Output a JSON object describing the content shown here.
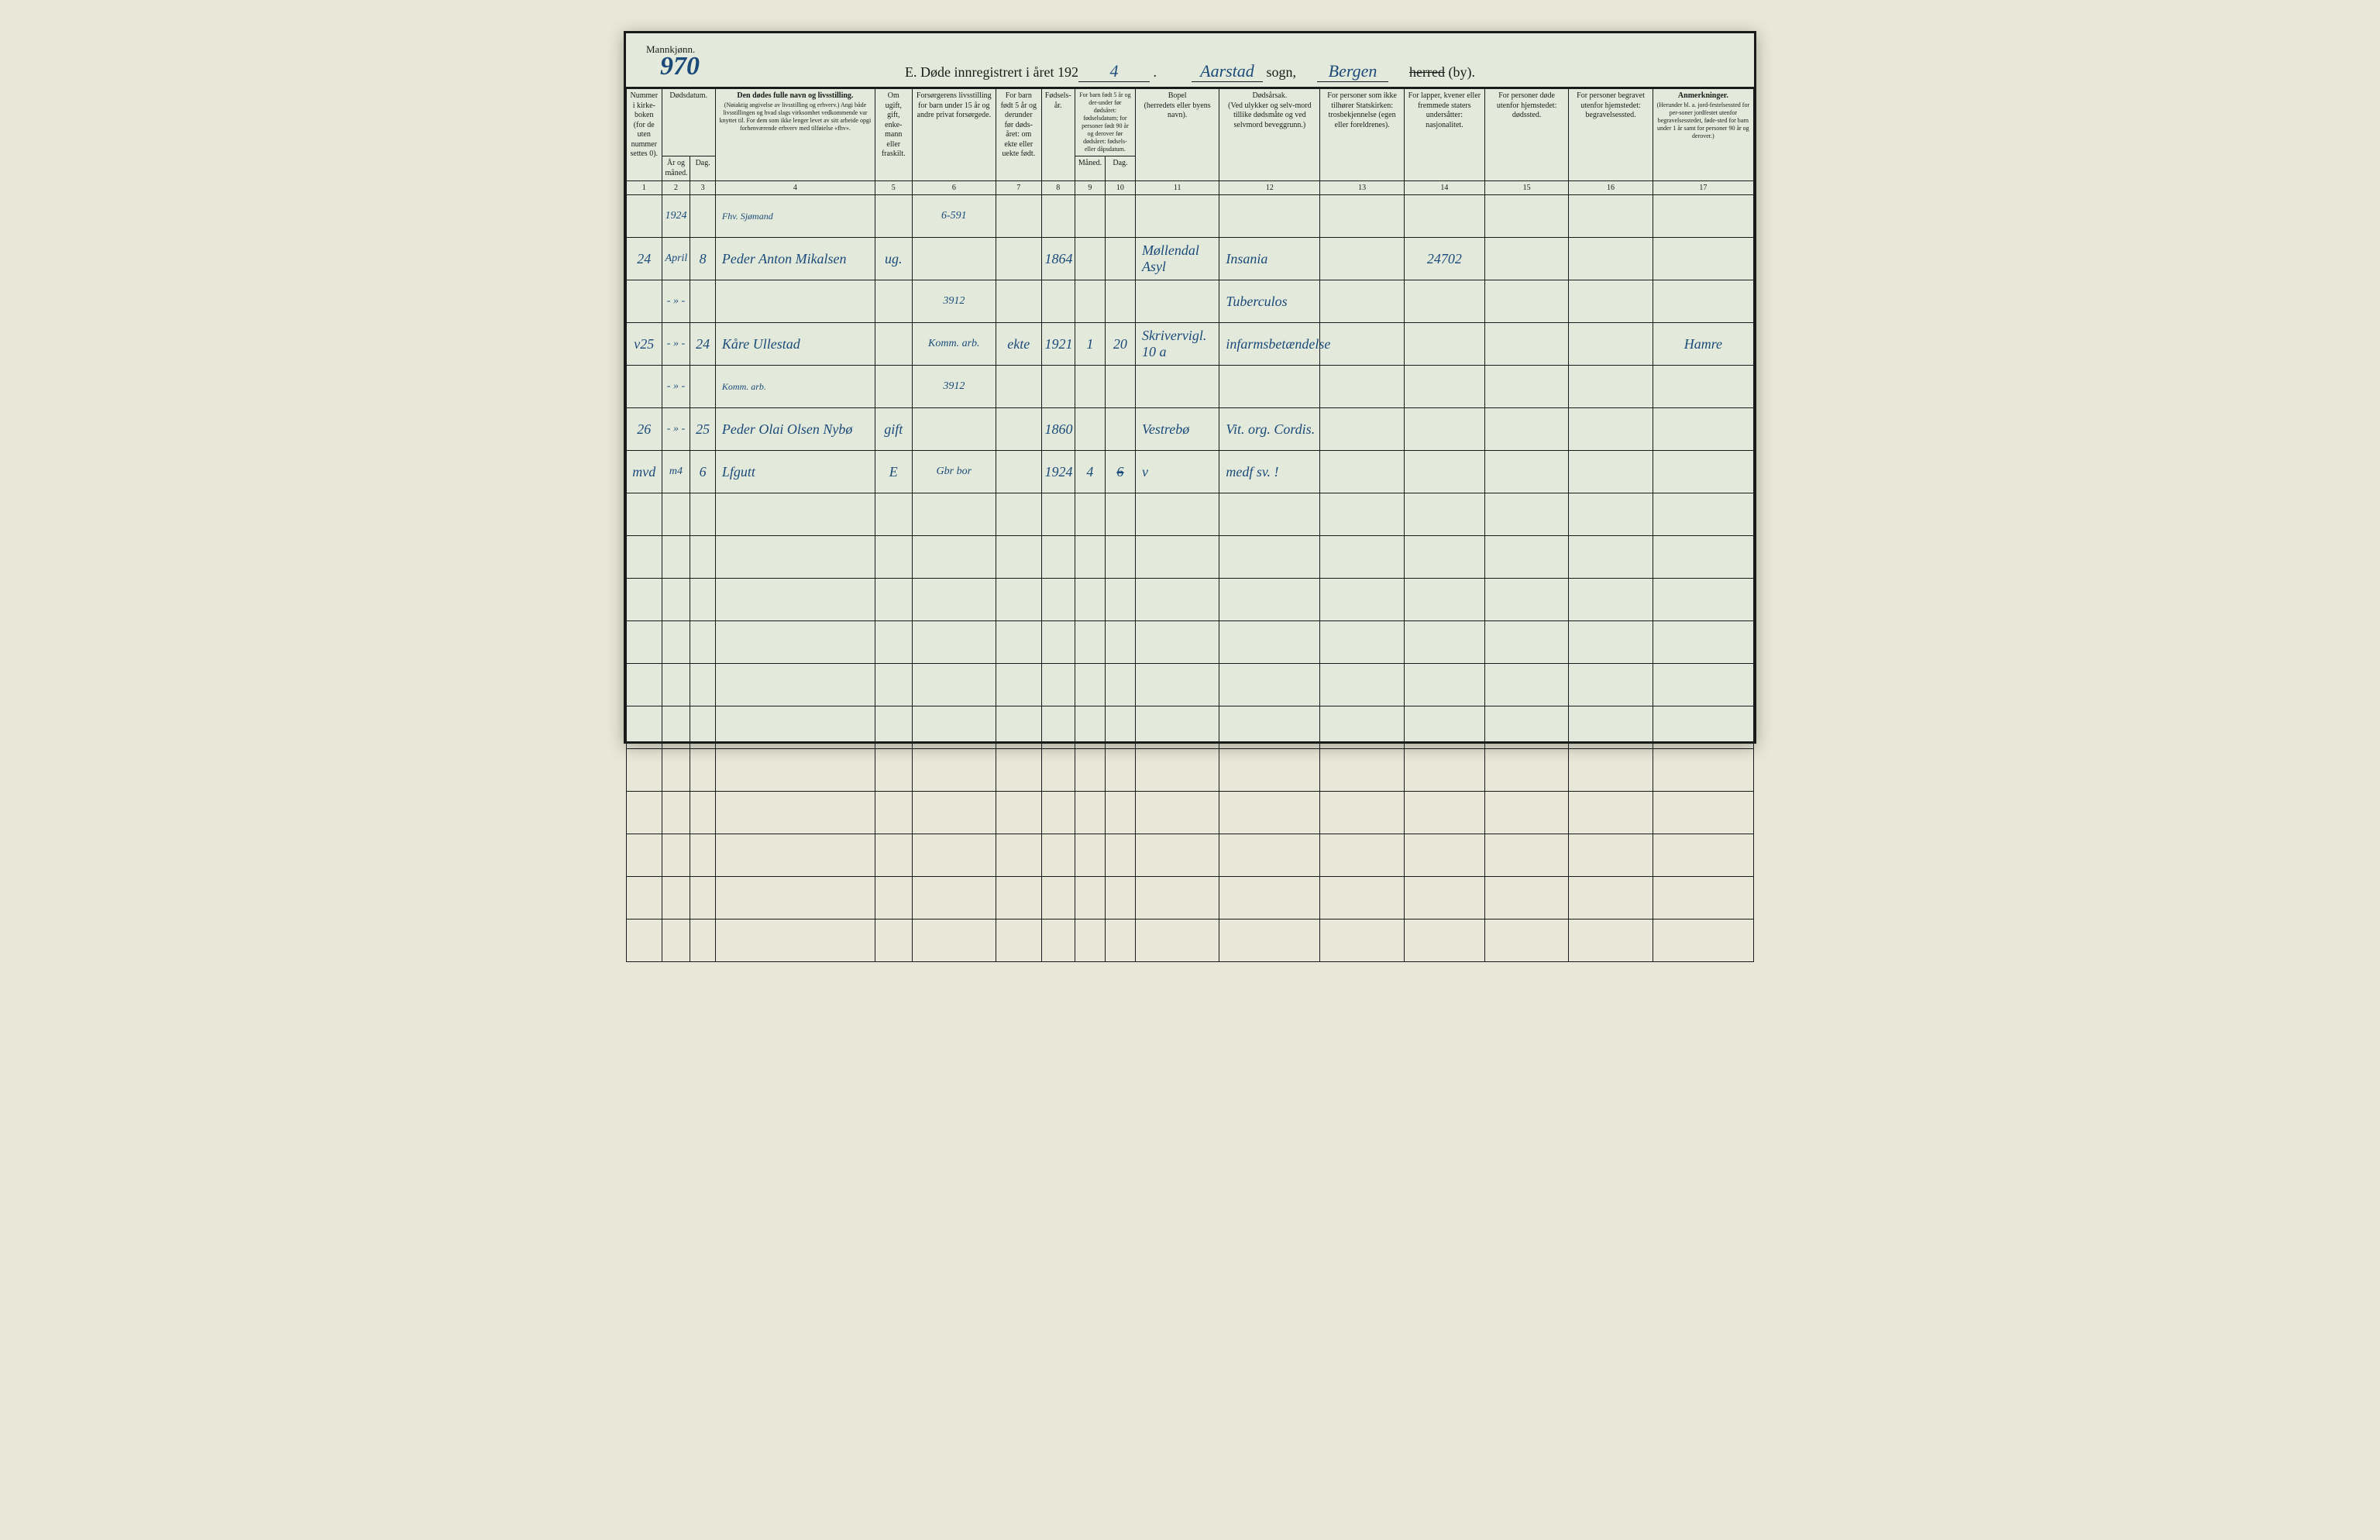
{
  "header": {
    "gender_label": "Mannkjønn.",
    "page_number": "970",
    "title_prefix": "E.  Døde innregistrert i året 192",
    "year_digit": "4",
    "sogn_value": "Aarstad",
    "sogn_label": "sogn,",
    "by_value": "Bergen",
    "herred_strike": "herred",
    "by_label": "(by)."
  },
  "columns": [
    {
      "w": 42,
      "label": "Nummer i kirke-boken (for de uten nummer settes 0).",
      "num": "1"
    },
    {
      "w": 34,
      "label": "År og måned.",
      "num": "2",
      "group": "Dødsdatum."
    },
    {
      "w": 30,
      "label": "Dag.",
      "num": "3",
      "group": "Dødsdatum."
    },
    {
      "w": 190,
      "label": "Den dødes fulle navn og livsstilling.\n(Nøiaktig angivelse av livsstilling og erhverv.)\nAngi både livsstillingen og hvad slags virksomhet vedkommende var knyttet til.\nFor dem som ikke lenger levet av sitt arbeide opgi forhenværende erhverv med tilføielse «fhv».",
      "num": "4"
    },
    {
      "w": 44,
      "label": "Om ugift, gift, enke-mann eller fraskilt.",
      "num": "5"
    },
    {
      "w": 100,
      "label": "Forsørgerens livsstilling\nfor barn under 15 år og andre privat forsørgede.",
      "num": "6"
    },
    {
      "w": 54,
      "label": "For barn født 5 år og derunder før døds-året: om ekte eller uekte født.",
      "num": "7"
    },
    {
      "w": 40,
      "label": "Fødsels-år.",
      "num": "8"
    },
    {
      "w": 36,
      "label": "Måned.",
      "num": "9",
      "group": "For barn født 5 år og der-under før dødsåret: fødselsdatum; for personer født 90 år og derover før dødsåret: fødsels- eller dåpsdatum."
    },
    {
      "w": 36,
      "label": "Dag.",
      "num": "10"
    },
    {
      "w": 100,
      "label": "Bopel\n(herredets eller byens navn).",
      "num": "11"
    },
    {
      "w": 120,
      "label": "Dødsårsak.\n(Ved ulykker og selv-mord tillike dødsmåte og ved selvmord beveggrunn.)",
      "num": "12"
    },
    {
      "w": 100,
      "label": "For personer som ikke tilhører Statskirken: trosbekjennelse (egen eller foreldrenes).",
      "num": "13"
    },
    {
      "w": 96,
      "label": "For lapper, kvener eller fremmede staters undersåtter: nasjonalitet.",
      "num": "14"
    },
    {
      "w": 100,
      "label": "For personer døde utenfor hjemstedet: dødssted.",
      "num": "15"
    },
    {
      "w": 100,
      "label": "For personer begravet utenfor hjemstedet: begravelsessted.",
      "num": "16"
    },
    {
      "w": 120,
      "label": "Anmerkninger.\n(Herunder bl. a. jord-festelsessted for per-soner jordfestet utenfor begravelsesstedet, føde-sted for barn under 1 år samt for personer 90 år og derover.)",
      "num": "17"
    }
  ],
  "rows": [
    {
      "num": "",
      "year": "1924",
      "day": "",
      "name_top": "Fhv. Sjømand",
      "name": "",
      "civil": "",
      "provider": "6-591",
      "ekte": "",
      "birth_year": "",
      "bm": "",
      "bd": "",
      "bopel": "",
      "cause": "",
      "faith": "",
      "nat": "",
      "dsted": "",
      "bsted": "",
      "anm": ""
    },
    {
      "num": "24",
      "year": "April",
      "day": "8",
      "name_top": "",
      "name": "Peder Anton Mikalsen",
      "civil": "ug.",
      "provider": "",
      "ekte": "",
      "birth_year": "1864",
      "bm": "",
      "bd": "",
      "bopel": "Møllendal Asyl",
      "cause": "Insania",
      "faith": "",
      "nat": "24702",
      "dsted": "",
      "bsted": "",
      "anm": ""
    },
    {
      "num": "",
      "year": "- » -",
      "day": "",
      "name_top": "",
      "name": "",
      "civil": "",
      "provider": "3912",
      "ekte": "",
      "birth_year": "",
      "bm": "",
      "bd": "",
      "bopel": "",
      "cause": "Tuberculos",
      "faith": "",
      "nat": "",
      "dsted": "",
      "bsted": "",
      "anm": ""
    },
    {
      "num": "v25",
      "year": "- » -",
      "day": "24",
      "name_top": "",
      "name": "Kåre Ullestad",
      "civil": "",
      "provider": "Komm. arb.",
      "ekte": "ekte",
      "birth_year": "1921",
      "bm": "1",
      "bd": "20",
      "bopel": "Skrivervigl. 10 a",
      "cause": "infarmsbetændelse",
      "faith": "",
      "nat": "",
      "dsted": "",
      "bsted": "",
      "anm": "Hamre"
    },
    {
      "num": "",
      "year": "- » -",
      "day": "",
      "name_top": "Komm. arb.",
      "name": "",
      "civil": "",
      "provider": "3912",
      "ekte": "",
      "birth_year": "",
      "bm": "",
      "bd": "",
      "bopel": "",
      "cause": "",
      "faith": "",
      "nat": "",
      "dsted": "",
      "bsted": "",
      "anm": ""
    },
    {
      "num": "26",
      "year": "- » -",
      "day": "25",
      "name_top": "",
      "name": "Peder Olai Olsen Nybø",
      "civil": "gift",
      "provider": "",
      "ekte": "",
      "birth_year": "1860",
      "bm": "",
      "bd": "",
      "bopel": "Vestrebø",
      "cause": "Vit. org. Cordis.",
      "faith": "",
      "nat": "",
      "dsted": "",
      "bsted": "",
      "anm": ""
    },
    {
      "num": "mvd",
      "year": "m4",
      "day": "6",
      "name_top": "",
      "name": "Lfgutt",
      "civil": "E",
      "provider": "Gbr bor",
      "ekte": "",
      "birth_year": "1924",
      "bm": "4",
      "bd": "6",
      "bd_cross": true,
      "bopel": "v",
      "cause": "medf sv. !",
      "faith": "",
      "nat": "",
      "dsted": "",
      "bsted": "",
      "anm": ""
    }
  ],
  "blank_rows": 11,
  "style": {
    "page_bg": "#e4eadb",
    "ink_print": "#1a1a1a",
    "ink_hand": "#1a4a7a",
    "border": "#1a1a1a"
  }
}
